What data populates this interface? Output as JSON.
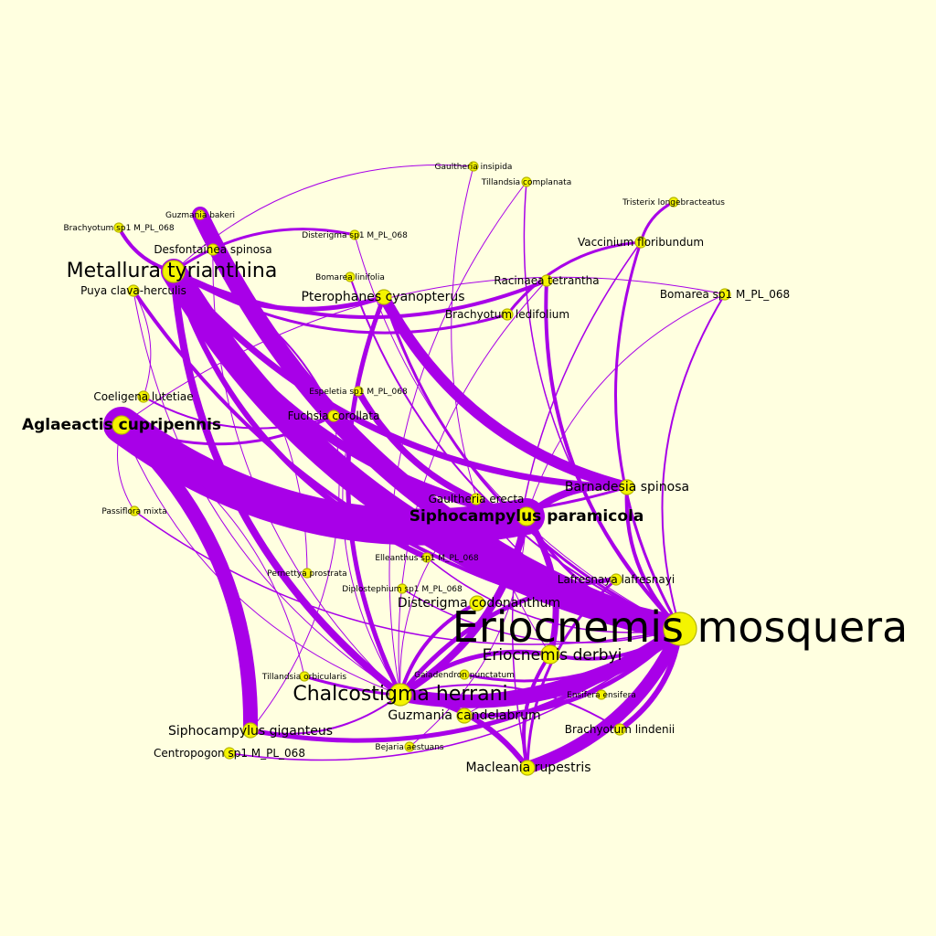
{
  "colors": {
    "background": "#ffffe0",
    "edge": "#a800e8",
    "node_fill": "#f4f400",
    "node_stroke": "#b8b800",
    "label": "#000000"
  },
  "nodes": [
    {
      "id": "eriocnemis_mosquera",
      "label": "Eriocnemis mosquera",
      "tier": "xl",
      "weight": "normal"
    },
    {
      "id": "metallura_tyrianthina",
      "label": "Metallura tyrianthina",
      "tier": "l",
      "weight": "normal"
    },
    {
      "id": "chalcostigma_herrani",
      "label": "Chalcostigma herrani",
      "tier": "l",
      "weight": "normal"
    },
    {
      "id": "eriocnemis_derbyi",
      "label": "Eriocnemis derbyi",
      "tier": "m",
      "weight": "normal"
    },
    {
      "id": "aglaeactis_cupripennis",
      "label": "Aglaeactis cupripennis",
      "tier": "m",
      "weight": "bold"
    },
    {
      "id": "siphocampylus_paramicola",
      "label": "Siphocampylus paramicola",
      "tier": "m",
      "weight": "bold"
    },
    {
      "id": "pterophanes_cyanopterus",
      "label": "Pterophanes cyanopterus",
      "tier": "s",
      "weight": "normal"
    },
    {
      "id": "siphocampylus_giganteus",
      "label": "Siphocampylus giganteus",
      "tier": "s",
      "weight": "normal"
    },
    {
      "id": "barnadesia_spinosa",
      "label": "Barnadesia spinosa",
      "tier": "s",
      "weight": "normal"
    },
    {
      "id": "macleania_rupestris",
      "label": "Macleania rupestris",
      "tier": "s",
      "weight": "normal"
    },
    {
      "id": "guzmania_candelabrum",
      "label": "Guzmania candelabrum",
      "tier": "s",
      "weight": "normal"
    },
    {
      "id": "disterigma_codonanthum",
      "label": "Disterigma codonanthum",
      "tier": "s",
      "weight": "normal"
    },
    {
      "id": "desfontainea_spinosa",
      "label": "Desfontainea spinosa",
      "tier": "xs",
      "weight": "normal"
    },
    {
      "id": "racinaea_tetrantha",
      "label": "Racinaea tetrantha",
      "tier": "xs",
      "weight": "normal"
    },
    {
      "id": "vaccinium_floribundum",
      "label": "Vaccinium floribundum",
      "tier": "xs",
      "weight": "normal"
    },
    {
      "id": "bomarea_sp1",
      "label": "Bomarea sp1 M_PL_068",
      "tier": "xs",
      "weight": "normal"
    },
    {
      "id": "brachyotum_ledifolium",
      "label": "Brachyotum ledifolium",
      "tier": "xs",
      "weight": "normal"
    },
    {
      "id": "puya_clava_herculis",
      "label": "Puya clava-herculis",
      "tier": "xs",
      "weight": "normal"
    },
    {
      "id": "coeligena_lutetiae",
      "label": "Coeligena lutetiae",
      "tier": "xs",
      "weight": "normal"
    },
    {
      "id": "fuchsia_corollata",
      "label": "Fuchsia corollata",
      "tier": "xs",
      "weight": "normal"
    },
    {
      "id": "centropogon_sp1",
      "label": "Centropogon sp1 M_PL_068",
      "tier": "xs",
      "weight": "normal"
    },
    {
      "id": "brachyotum_lindenii",
      "label": "Brachyotum lindenii",
      "tier": "xs",
      "weight": "normal"
    },
    {
      "id": "lafresnaya_lafresnayi",
      "label": "Lafresnaya lafresnayi",
      "tier": "xs",
      "weight": "normal"
    },
    {
      "id": "gaultheria_erecta",
      "label": "Gaultheria erecta",
      "tier": "xs",
      "weight": "normal"
    },
    {
      "id": "gaultheria_insipida",
      "label": "Gaultheria insipida",
      "tier": "xxs",
      "weight": "normal"
    },
    {
      "id": "tillandsia_complanata",
      "label": "Tillandsia complanata",
      "tier": "xxs",
      "weight": "normal"
    },
    {
      "id": "tristerix_longebracteatus",
      "label": "Tristerix longebracteatus",
      "tier": "xxs",
      "weight": "normal"
    },
    {
      "id": "guzmania_bakeri",
      "label": "Guzmania bakeri",
      "tier": "xxs",
      "weight": "normal"
    },
    {
      "id": "brachyotum_sp1",
      "label": "Brachyotum sp1 M_PL_068",
      "tier": "xxs",
      "weight": "normal"
    },
    {
      "id": "disterigma_sp1",
      "label": "Disterigma sp1 M_PL_068",
      "tier": "xxs",
      "weight": "normal"
    },
    {
      "id": "bomarea_linifolia",
      "label": "Bomarea linifolia",
      "tier": "xxs",
      "weight": "normal"
    },
    {
      "id": "espeletia_sp1",
      "label": "Espeletia sp1 M_PL_068",
      "tier": "xxs",
      "weight": "normal"
    },
    {
      "id": "passiflora_mixta",
      "label": "Passiflora mixta",
      "tier": "xxs",
      "weight": "normal"
    },
    {
      "id": "elleanthus_sp1",
      "label": "Elleanthus sp1 M_PL_068",
      "tier": "xxs",
      "weight": "normal"
    },
    {
      "id": "pernettya_prostrata",
      "label": "Pernettya prostrata",
      "tier": "xxs",
      "weight": "normal"
    },
    {
      "id": "diplostephium_sp1",
      "label": "Diplostephium sp1 M_PL_068",
      "tier": "xxs",
      "weight": "normal"
    },
    {
      "id": "tillandsia_orbicularis",
      "label": "Tillandsia orbicularis",
      "tier": "xxs",
      "weight": "normal"
    },
    {
      "id": "gaiadendron_punctatum",
      "label": "Gaiadendron punctatum",
      "tier": "xxs",
      "weight": "normal"
    },
    {
      "id": "ensifera_ensifera",
      "label": "Ensifera ensifera",
      "tier": "xxs",
      "weight": "normal"
    },
    {
      "id": "bejaria_aestuans",
      "label": "Bejaria aestuans",
      "tier": "xxs",
      "weight": "normal"
    }
  ],
  "edges": [
    {
      "s": "aglaeactis_cupripennis",
      "t": "siphocampylus_paramicola",
      "w": 40
    },
    {
      "s": "metallura_tyrianthina",
      "t": "eriocnemis_mosquera",
      "w": 28
    },
    {
      "s": "guzmania_bakeri",
      "t": "eriocnemis_mosquera",
      "w": 18
    },
    {
      "s": "siphocampylus_giganteus",
      "t": "aglaeactis_cupripennis",
      "w": 16
    },
    {
      "s": "chalcostigma_herrani",
      "t": "eriocnemis_mosquera",
      "w": 15
    },
    {
      "s": "macleania_rupestris",
      "t": "eriocnemis_mosquera",
      "w": 14
    },
    {
      "s": "pterophanes_cyanopterus",
      "t": "barnadesia_spinosa",
      "w": 12
    },
    {
      "s": "desfontainea_spinosa",
      "t": "eriocnemis_mosquera",
      "w": 10
    },
    {
      "s": "metallura_tyrianthina",
      "t": "siphocampylus_paramicola",
      "w": 10
    },
    {
      "s": "barnadesia_spinosa",
      "t": "siphocampylus_paramicola",
      "w": 8
    },
    {
      "s": "metallura_tyrianthina",
      "t": "chalcostigma_herrani",
      "w": 8
    },
    {
      "s": "chalcostigma_herrani",
      "t": "siphocampylus_paramicola",
      "w": 8
    },
    {
      "s": "metallura_tyrianthina",
      "t": "barnadesia_spinosa",
      "w": 7
    },
    {
      "s": "espeletia_sp1",
      "t": "siphocampylus_paramicola",
      "w": 7
    },
    {
      "s": "eriocnemis_derbyi",
      "t": "siphocampylus_paramicola",
      "w": 7
    },
    {
      "s": "macleania_rupestris",
      "t": "chalcostigma_herrani",
      "w": 6
    },
    {
      "s": "brachyotum_lindenii",
      "t": "eriocnemis_mosquera",
      "w": 6
    },
    {
      "s": "metallura_tyrianthina",
      "t": "elleanthus_sp1",
      "w": 6
    },
    {
      "s": "siphocampylus_giganteus",
      "t": "eriocnemis_mosquera",
      "w": 5
    },
    {
      "s": "eriocnemis_derbyi",
      "t": "chalcostigma_herrani",
      "w": 5
    },
    {
      "s": "lafresnaya_lafresnayi",
      "t": "chalcostigma_herrani",
      "w": 5
    },
    {
      "s": "pterophanes_cyanopterus",
      "t": "chalcostigma_herrani",
      "w": 5
    },
    {
      "s": "metallura_tyrianthina",
      "t": "pterophanes_cyanopterus",
      "w": 5
    },
    {
      "s": "guzmania_candelabrum",
      "t": "eriocnemis_mosquera",
      "w": 5
    },
    {
      "s": "barnadesia_spinosa",
      "t": "eriocnemis_mosquera",
      "w": 4
    },
    {
      "s": "racinaea_tetrantha",
      "t": "eriocnemis_mosquera",
      "w": 4
    },
    {
      "s": "brachyotum_sp1",
      "t": "metallura_tyrianthina",
      "w": 4
    },
    {
      "s": "metallura_tyrianthina",
      "t": "racinaea_tetrantha",
      "w": 4
    },
    {
      "s": "puya_clava_herculis",
      "t": "eriocnemis_mosquera",
      "w": 4
    },
    {
      "s": "eriocnemis_derbyi",
      "t": "macleania_rupestris",
      "w": 4
    },
    {
      "s": "disterigma_codonanthum",
      "t": "chalcostigma_herrani",
      "w": 4
    },
    {
      "s": "eriocnemis_derbyi",
      "t": "eriocnemis_mosquera",
      "w": 4
    },
    {
      "s": "metallura_tyrianthina",
      "t": "brachyotum_ledifolium",
      "w": 3
    },
    {
      "s": "pterophanes_cyanopterus",
      "t": "eriocnemis_mosquera",
      "w": 3
    },
    {
      "s": "vaccinium_floribundum",
      "t": "eriocnemis_mosquera",
      "w": 3
    },
    {
      "s": "vaccinium_floribundum",
      "t": "brachyotum_ledifolium",
      "w": 3
    },
    {
      "s": "tristerix_longebracteatus",
      "t": "vaccinium_floribundum",
      "w": 3
    },
    {
      "s": "aglaeactis_cupripennis",
      "t": "fuchsia_corollata",
      "w": 3
    },
    {
      "s": "aglaeactis_cupripennis",
      "t": "barnadesia_spinosa",
      "w": 3
    },
    {
      "s": "disterigma_sp1",
      "t": "metallura_tyrianthina",
      "w": 3
    },
    {
      "s": "fuchsia_corollata",
      "t": "metallura_tyrianthina",
      "w": 2
    },
    {
      "s": "guzmania_candelabrum",
      "t": "chalcostigma_herrani",
      "w": 3
    },
    {
      "s": "gaiadendron_punctatum",
      "t": "eriocnemis_mosquera",
      "w": 3
    },
    {
      "s": "tillandsia_orbicularis",
      "t": "eriocnemis_mosquera",
      "w": 3
    },
    {
      "s": "siphocampylus_paramicola",
      "t": "eriocnemis_mosquera",
      "w": 3
    },
    {
      "s": "lafresnaya_lafresnayi",
      "t": "macleania_rupestris",
      "w": 3
    },
    {
      "s": "brachyotum_lindenii",
      "t": "chalcostigma_herrani",
      "w": 2
    },
    {
      "s": "bomarea_linifolia",
      "t": "eriocnemis_mosquera",
      "w": 2
    },
    {
      "s": "coeligena_lutetiae",
      "t": "fuchsia_corollata",
      "w": 2
    },
    {
      "s": "bomarea_sp1",
      "t": "eriocnemis_mosquera",
      "w": 2
    },
    {
      "s": "tillandsia_complanata",
      "t": "eriocnemis_mosquera",
      "w": 1.5
    },
    {
      "s": "passiflora_mixta",
      "t": "eriocnemis_mosquera",
      "w": 1.5
    },
    {
      "s": "diplostephium_sp1",
      "t": "eriocnemis_mosquera",
      "w": 1.5
    },
    {
      "s": "centropogon_sp1",
      "t": "eriocnemis_mosquera",
      "w": 1.5
    },
    {
      "s": "elleanthus_sp1",
      "t": "eriocnemis_mosquera",
      "w": 1.5
    },
    {
      "s": "gaultheria_erecta",
      "t": "eriocnemis_mosquera",
      "w": 1.5
    },
    {
      "s": "siphocampylus_giganteus",
      "t": "chalcostigma_herrani",
      "w": 2
    },
    {
      "s": "puya_clava_herculis",
      "t": "chalcostigma_herrani",
      "w": 1
    },
    {
      "s": "aglaeactis_cupripennis",
      "t": "passiflora_mixta",
      "w": 1
    },
    {
      "s": "coeligena_lutetiae",
      "t": "puya_clava_herculis",
      "w": 1
    },
    {
      "s": "siphocampylus_giganteus",
      "t": "fuchsia_corollata",
      "w": 1
    },
    {
      "s": "gaultheria_insipida",
      "t": "eriocnemis_derbyi",
      "w": 1
    },
    {
      "s": "gaultheria_insipida",
      "t": "metallura_tyrianthina",
      "w": 1
    },
    {
      "s": "tillandsia_complanata",
      "t": "chalcostigma_herrani",
      "w": 1
    },
    {
      "s": "bomarea_sp1",
      "t": "aglaeactis_cupripennis",
      "w": 1
    },
    {
      "s": "bomarea_sp1",
      "t": "siphocampylus_paramicola",
      "w": 1
    },
    {
      "s": "vaccinium_floribundum",
      "t": "macleania_rupestris",
      "w": 1.5
    },
    {
      "s": "pernettya_prostrata",
      "t": "metallura_tyrianthina",
      "w": 1
    },
    {
      "s": "bejaria_aestuans",
      "t": "siphocampylus_paramicola",
      "w": 1
    },
    {
      "s": "ensifera_ensifera",
      "t": "guzmania_candelabrum",
      "w": 1
    },
    {
      "s": "desfontainea_spinosa",
      "t": "chalcostigma_herrani",
      "w": 1
    },
    {
      "s": "aglaeactis_cupripennis",
      "t": "chalcostigma_herrani",
      "w": 1
    },
    {
      "s": "disterigma_sp1",
      "t": "eriocnemis_mosquera",
      "w": 1
    },
    {
      "s": "gaultheria_erecta",
      "t": "chalcostigma_herrani",
      "w": 1
    },
    {
      "s": "espeletia_sp1",
      "t": "chalcostigma_herrani",
      "w": 1
    },
    {
      "s": "racinaea_tetrantha",
      "t": "chalcostigma_herrani",
      "w": 1
    },
    {
      "s": "tillandsia_orbicularis",
      "t": "aglaeactis_cupripennis",
      "w": 1
    }
  ]
}
